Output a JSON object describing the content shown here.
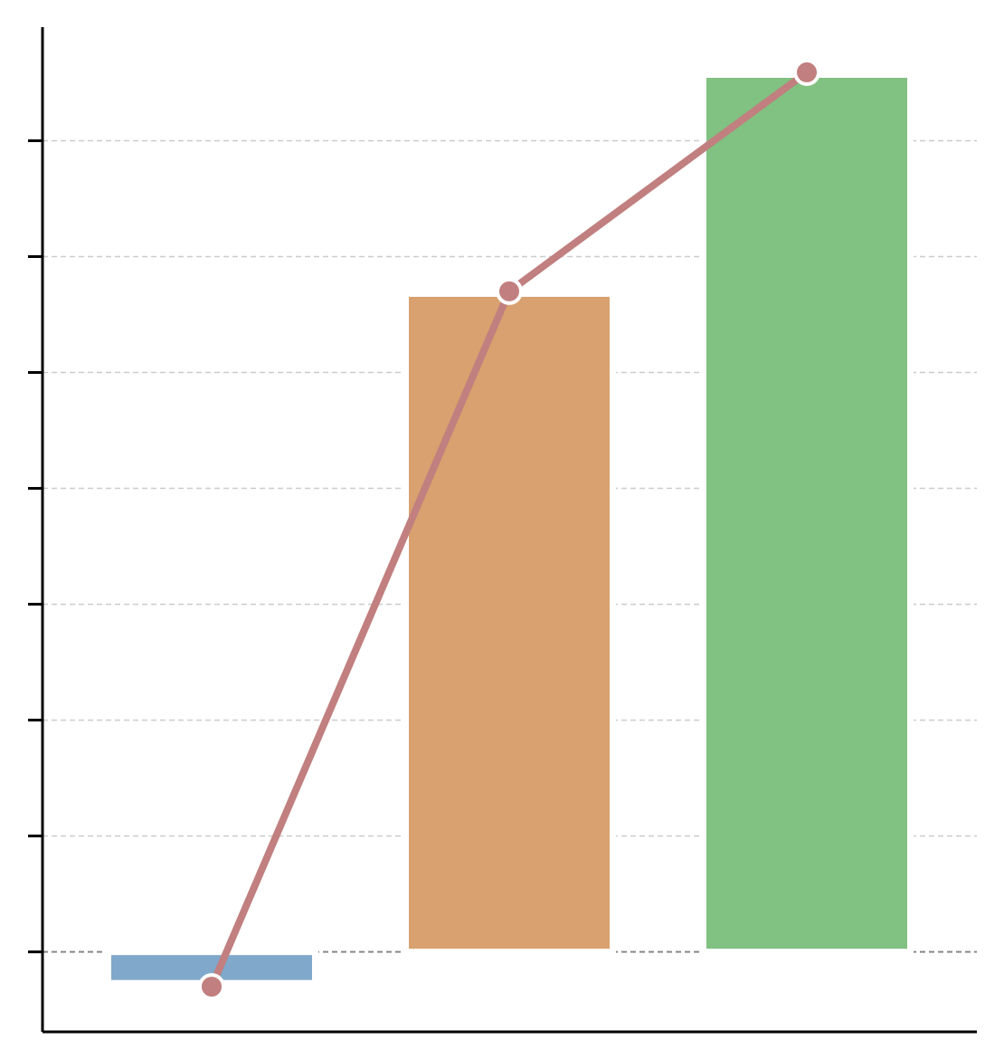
{
  "chart_data": {
    "type": "bar-line",
    "categories": [
      null,
      null,
      null
    ],
    "series": [
      {
        "type": "bar",
        "colors": [
          "#7fa8cb",
          "#d8a16f",
          "#81c181"
        ],
        "values": [
          -0.27,
          5.68,
          7.57
        ]
      },
      {
        "type": "line",
        "color": "#c17f7f",
        "values": [
          -0.3,
          5.7,
          7.59
        ]
      }
    ],
    "ylim": [
      -0.69,
      7.98
    ],
    "yticks": [
      0,
      1,
      2,
      3,
      4,
      5,
      6,
      7
    ],
    "grid": true
  }
}
